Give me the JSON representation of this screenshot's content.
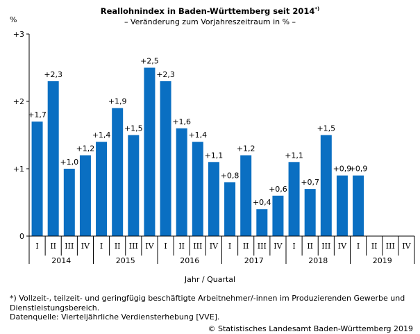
{
  "header": {
    "title": "Reallohnindex in Baden-Württemberg seit 2014",
    "title_mark": "*)",
    "subtitle": "– Veränderung zum Vorjahreszeitraum in % –",
    "unit": "%"
  },
  "footer": {
    "xlabel": "Jahr / Quartal",
    "footnote": "*) Vollzeit-, teilzeit- und geringfügig beschäftigte Arbeitnehmer/-innen im Produzierenden Gewerbe und Dienstleistungsbereich.",
    "source": "Datenquelle: Vierteljährliche Verdiensterhebung [VVE].",
    "copyright": "© Statistisches Landesamt Baden-Württemberg 2019"
  },
  "chart_data": {
    "type": "bar",
    "title": "Reallohnindex in Baden-Württemberg seit 2014",
    "subtitle": "– Veränderung zum Vorjahreszeitraum in % –",
    "xlabel": "Jahr / Quartal",
    "ylabel": "%",
    "ylim": [
      0,
      3
    ],
    "yticks": [
      0,
      1,
      2,
      3
    ],
    "ytick_labels": [
      "0",
      "+1",
      "+2",
      "+3"
    ],
    "grid": false,
    "legend": "none",
    "bar_color": "#0a6fc2",
    "years": [
      "2014",
      "2015",
      "2016",
      "2017",
      "2018",
      "2019"
    ],
    "categories": [
      "I",
      "II",
      "III",
      "IV",
      "I",
      "II",
      "III",
      "IV",
      "I",
      "II",
      "III",
      "IV",
      "I",
      "II",
      "III",
      "IV",
      "I",
      "II",
      "III",
      "IV",
      "I",
      "II",
      "III",
      "IV"
    ],
    "values": [
      1.7,
      2.3,
      1.0,
      1.2,
      1.4,
      1.9,
      1.5,
      2.5,
      2.3,
      1.6,
      1.4,
      1.1,
      0.8,
      1.2,
      0.4,
      0.6,
      1.1,
      0.7,
      1.5,
      0.9,
      0.9,
      null,
      null,
      null
    ],
    "value_labels": [
      "+1,7",
      "+2,3",
      "+1,0",
      "+1,2",
      "+1,4",
      "+1,9",
      "+1,5",
      "+2,5",
      "+2,3",
      "+1,6",
      "+1,4",
      "+1,1",
      "+0,8",
      "+1,2",
      "+0,4",
      "+0,6",
      "+1,1",
      "+0,7",
      "+1,5",
      "+0,9",
      "+0,9",
      "",
      "",
      ""
    ]
  }
}
